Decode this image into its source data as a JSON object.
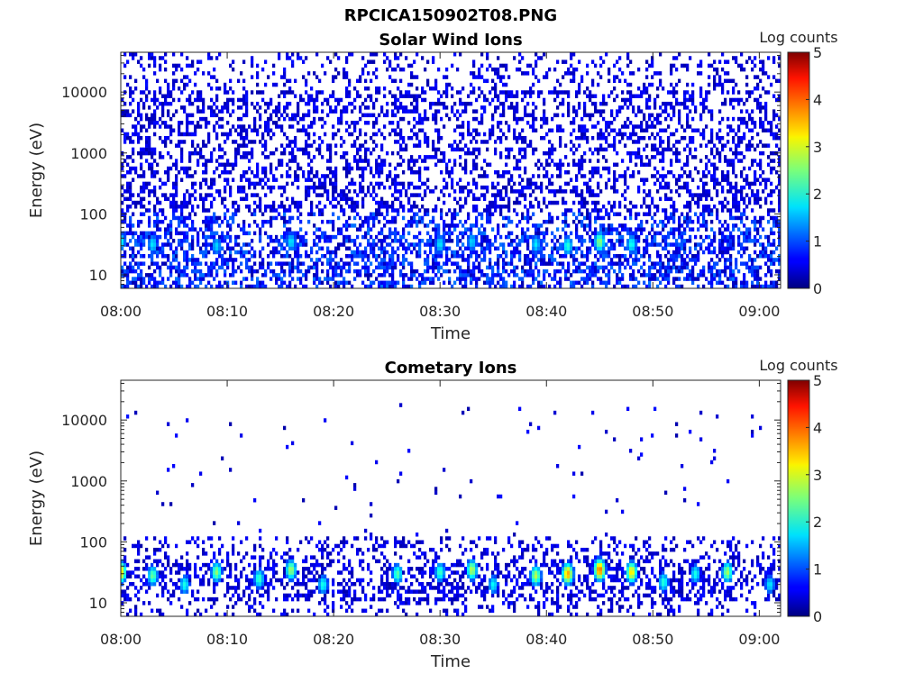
{
  "figure": {
    "title": "RPCICA150902T08.PNG"
  },
  "chart_data": [
    {
      "type": "heatmap",
      "title": "Solar Wind Ions",
      "xlabel": "Time",
      "ylabel": "Energy (eV)",
      "yscale": "log",
      "xlim": [
        "08:00",
        "09:02"
      ],
      "ylim": [
        6,
        45000
      ],
      "x_ticks": [
        "08:00",
        "08:10",
        "08:20",
        "08:30",
        "08:40",
        "08:50",
        "09:00"
      ],
      "y_ticks": [
        "10",
        "100",
        "1000",
        "10000"
      ],
      "colorbar": {
        "label": "Log counts",
        "range": [
          0,
          5
        ],
        "ticks": [
          "0",
          "1",
          "2",
          "3",
          "4",
          "5"
        ],
        "colormap": "jet"
      },
      "hotspots": [
        {
          "time": "08:00",
          "energy_ev": 35,
          "log_counts": 1.9
        },
        {
          "time": "08:03",
          "energy_ev": 32,
          "log_counts": 1.8
        },
        {
          "time": "08:09",
          "energy_ev": 30,
          "log_counts": 1.7
        },
        {
          "time": "08:16",
          "energy_ev": 35,
          "log_counts": 1.8
        },
        {
          "time": "08:30",
          "energy_ev": 32,
          "log_counts": 1.8
        },
        {
          "time": "08:33",
          "energy_ev": 35,
          "log_counts": 1.7
        },
        {
          "time": "08:39",
          "energy_ev": 32,
          "log_counts": 1.8
        },
        {
          "time": "08:42",
          "energy_ev": 30,
          "log_counts": 2.1
        },
        {
          "time": "08:45",
          "energy_ev": 35,
          "log_counts": 2.6
        },
        {
          "time": "08:48",
          "energy_ev": 32,
          "log_counts": 2.0
        }
      ]
    },
    {
      "type": "heatmap",
      "title": "Cometary Ions",
      "xlabel": "Time",
      "ylabel": "Energy (eV)",
      "yscale": "log",
      "xlim": [
        "08:00",
        "09:02"
      ],
      "ylim": [
        6,
        45000
      ],
      "x_ticks": [
        "08:00",
        "08:10",
        "08:20",
        "08:30",
        "08:40",
        "08:50",
        "09:00"
      ],
      "y_ticks": [
        "10",
        "100",
        "1000",
        "10000"
      ],
      "colorbar": {
        "label": "Log counts",
        "range": [
          0,
          5
        ],
        "ticks": [
          "0",
          "1",
          "2",
          "3",
          "4",
          "5"
        ],
        "colormap": "jet"
      },
      "hotspots": [
        {
          "time": "08:00",
          "energy_ev": 32,
          "log_counts": 3.4
        },
        {
          "time": "08:03",
          "energy_ev": 28,
          "log_counts": 2.4
        },
        {
          "time": "08:06",
          "energy_ev": 20,
          "log_counts": 2.0
        },
        {
          "time": "08:09",
          "energy_ev": 32,
          "log_counts": 2.6
        },
        {
          "time": "08:13",
          "energy_ev": 25,
          "log_counts": 2.2
        },
        {
          "time": "08:16",
          "energy_ev": 35,
          "log_counts": 2.7
        },
        {
          "time": "08:19",
          "energy_ev": 20,
          "log_counts": 2.0
        },
        {
          "time": "08:26",
          "energy_ev": 30,
          "log_counts": 2.3
        },
        {
          "time": "08:30",
          "energy_ev": 32,
          "log_counts": 2.2
        },
        {
          "time": "08:33",
          "energy_ev": 35,
          "log_counts": 2.8
        },
        {
          "time": "08:35",
          "energy_ev": 20,
          "log_counts": 1.9
        },
        {
          "time": "08:39",
          "energy_ev": 28,
          "log_counts": 2.8
        },
        {
          "time": "08:42",
          "energy_ev": 30,
          "log_counts": 3.6
        },
        {
          "time": "08:45",
          "energy_ev": 35,
          "log_counts": 3.9
        },
        {
          "time": "08:48",
          "energy_ev": 32,
          "log_counts": 3.3
        },
        {
          "time": "08:51",
          "energy_ev": 22,
          "log_counts": 2.1
        },
        {
          "time": "08:54",
          "energy_ev": 30,
          "log_counts": 2.0
        },
        {
          "time": "08:57",
          "energy_ev": 32,
          "log_counts": 2.7
        },
        {
          "time": "09:01",
          "energy_ev": 20,
          "log_counts": 1.8
        }
      ]
    }
  ]
}
